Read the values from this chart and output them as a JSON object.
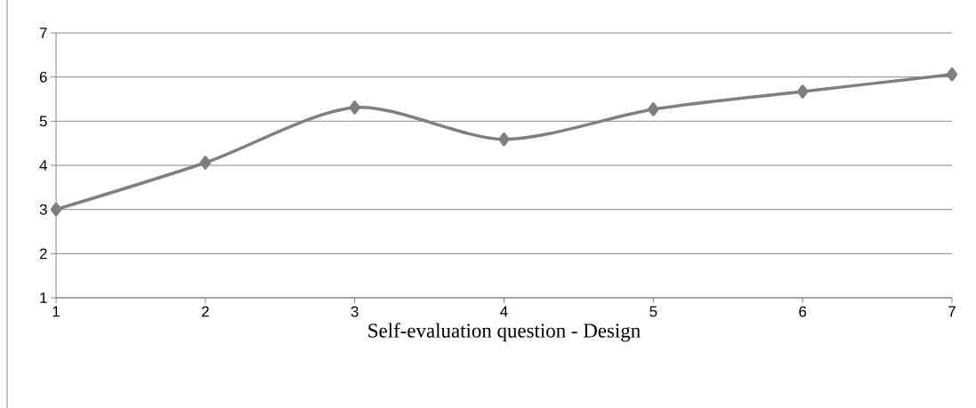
{
  "chart_data": {
    "type": "line",
    "xlabel": "Self-evaluation question - Design",
    "categories": [
      "1",
      "2",
      "3",
      "4",
      "5",
      "6",
      "7"
    ],
    "series": [
      {
        "color": "#7f7f7f",
        "values": [
          3.0,
          4.06,
          5.31,
          4.59,
          5.27,
          5.67,
          6.06
        ]
      }
    ],
    "ylim": [
      1,
      7
    ],
    "yticks": [
      1,
      2,
      3,
      4,
      5,
      6,
      7
    ],
    "grid": "y",
    "marker": "diamond",
    "line_style": "solid"
  }
}
